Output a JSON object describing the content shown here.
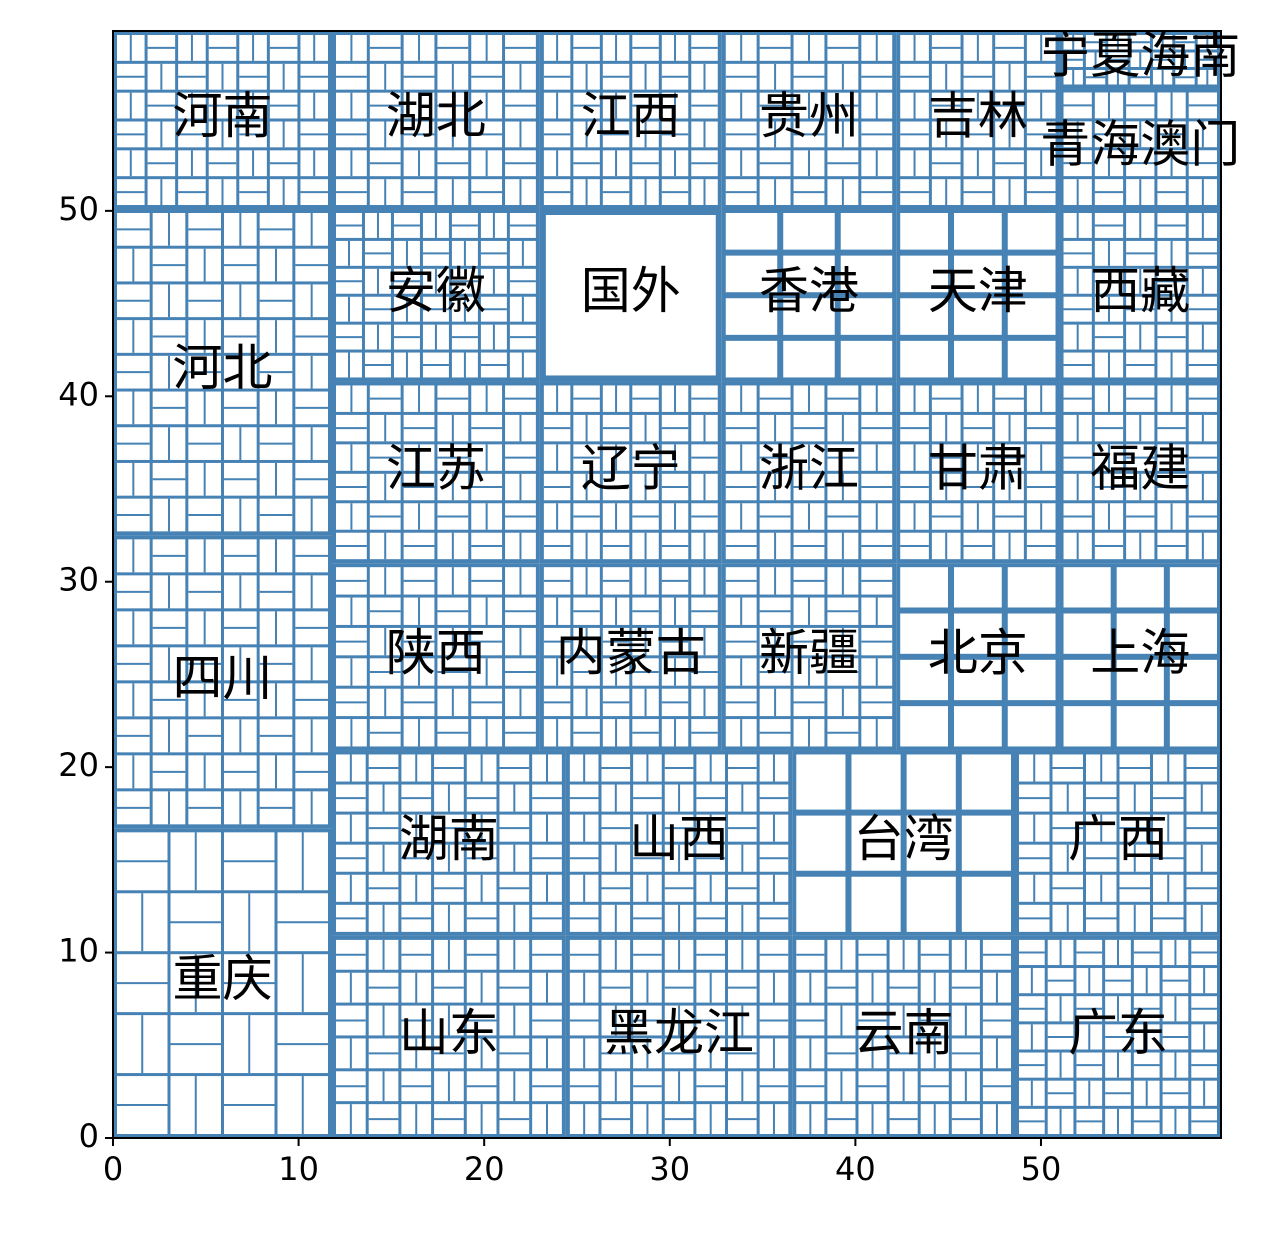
{
  "chart_data": {
    "type": "treemap",
    "xlim": [
      0,
      59.7
    ],
    "ylim": [
      0,
      59.7
    ],
    "xticks": [
      0,
      10,
      20,
      30,
      40,
      50
    ],
    "yticks": [
      0,
      10,
      20,
      30,
      40,
      50
    ],
    "grid": false,
    "colors": {
      "fill": "#4682b4",
      "cell_border": "#ffffff",
      "label": "#000000",
      "axis": "#000000"
    },
    "cells": [
      {
        "label": "河南",
        "x0": 0.0,
        "y0": 50.1,
        "x1": 11.8,
        "y1": 59.7,
        "n": 40
      },
      {
        "label": "河北",
        "x0": 0.0,
        "y0": 32.5,
        "x1": 11.8,
        "y1": 50.1,
        "n": 54
      },
      {
        "label": "四川",
        "x0": 0.0,
        "y0": 16.7,
        "x1": 11.8,
        "y1": 32.5,
        "n": 48
      },
      {
        "label": "重庆",
        "x0": 0.0,
        "y0": 0.0,
        "x1": 11.8,
        "y1": 16.7,
        "n": 20
      },
      {
        "label": "湖北",
        "x0": 11.8,
        "y0": 50.1,
        "x1": 23.0,
        "y1": 59.7,
        "n": 36
      },
      {
        "label": "安徽",
        "x0": 11.8,
        "y0": 40.8,
        "x1": 23.0,
        "y1": 50.1,
        "n": 36
      },
      {
        "label": "江苏",
        "x0": 11.8,
        "y0": 31.0,
        "x1": 23.0,
        "y1": 40.8,
        "n": 36
      },
      {
        "label": "陕西",
        "x0": 11.8,
        "y0": 20.9,
        "x1": 23.0,
        "y1": 31.0,
        "n": 36
      },
      {
        "label": "湖南",
        "x0": 11.8,
        "y0": 10.9,
        "x1": 24.4,
        "y1": 20.9,
        "n": 36
      },
      {
        "label": "山东",
        "x0": 11.8,
        "y0": 0.0,
        "x1": 24.4,
        "y1": 10.9,
        "n": 42
      },
      {
        "label": "江西",
        "x0": 23.0,
        "y0": 50.1,
        "x1": 32.8,
        "y1": 59.7,
        "n": 36
      },
      {
        "label": "国外",
        "x0": 23.0,
        "y0": 40.8,
        "x1": 32.8,
        "y1": 50.1,
        "n": 1
      },
      {
        "label": "辽宁",
        "x0": 23.0,
        "y0": 31.0,
        "x1": 32.8,
        "y1": 40.8,
        "n": 36
      },
      {
        "label": "内蒙古",
        "x0": 23.0,
        "y0": 20.9,
        "x1": 32.8,
        "y1": 31.0,
        "n": 36
      },
      {
        "label": "山西",
        "x0": 24.4,
        "y0": 10.9,
        "x1": 36.6,
        "y1": 20.9,
        "n": 40
      },
      {
        "label": "黑龙江",
        "x0": 24.4,
        "y0": 0.0,
        "x1": 36.6,
        "y1": 10.9,
        "n": 42
      },
      {
        "label": "贵州",
        "x0": 32.8,
        "y0": 50.1,
        "x1": 42.2,
        "y1": 59.7,
        "n": 30
      },
      {
        "label": "香港",
        "x0": 32.8,
        "y0": 40.8,
        "x1": 42.2,
        "y1": 50.1,
        "n": 12
      },
      {
        "label": "浙江",
        "x0": 32.8,
        "y0": 31.0,
        "x1": 42.2,
        "y1": 40.8,
        "n": 30
      },
      {
        "label": "新疆",
        "x0": 32.8,
        "y0": 20.9,
        "x1": 42.2,
        "y1": 31.0,
        "n": 30
      },
      {
        "label": "台湾",
        "x0": 36.6,
        "y0": 10.9,
        "x1": 48.6,
        "y1": 20.9,
        "n": 12
      },
      {
        "label": "云南",
        "x0": 36.6,
        "y0": 0.0,
        "x1": 48.6,
        "y1": 10.9,
        "n": 42
      },
      {
        "label": "吉林",
        "x0": 42.2,
        "y0": 50.1,
        "x1": 51.0,
        "y1": 59.7,
        "n": 30
      },
      {
        "label": "天津",
        "x0": 42.2,
        "y0": 40.8,
        "x1": 51.0,
        "y1": 50.1,
        "n": 12
      },
      {
        "label": "甘肃",
        "x0": 42.2,
        "y0": 31.0,
        "x1": 51.0,
        "y1": 40.8,
        "n": 30
      },
      {
        "label": "北京",
        "x0": 42.2,
        "y0": 20.9,
        "x1": 51.0,
        "y1": 31.0,
        "n": 12
      },
      {
        "label": "广西",
        "x0": 48.6,
        "y0": 10.9,
        "x1": 59.7,
        "y1": 20.9,
        "n": 36
      },
      {
        "label": "广东",
        "x0": 48.6,
        "y0": 0.0,
        "x1": 59.7,
        "y1": 10.9,
        "n": 48
      },
      {
        "label": "宁夏海南",
        "x0": 51.0,
        "y0": 56.6,
        "x1": 59.7,
        "y1": 59.7,
        "n": 16
      },
      {
        "label": "青海澳门",
        "x0": 51.0,
        "y0": 50.1,
        "x1": 59.7,
        "y1": 56.6,
        "n": 20
      },
      {
        "label": "西藏",
        "x0": 51.0,
        "y0": 40.8,
        "x1": 59.7,
        "y1": 50.1,
        "n": 30
      },
      {
        "label": "福建",
        "x0": 51.0,
        "y0": 31.0,
        "x1": 59.7,
        "y1": 40.8,
        "n": 30
      },
      {
        "label": "上海",
        "x0": 51.0,
        "y0": 20.9,
        "x1": 59.7,
        "y1": 31.0,
        "n": 12
      }
    ]
  }
}
